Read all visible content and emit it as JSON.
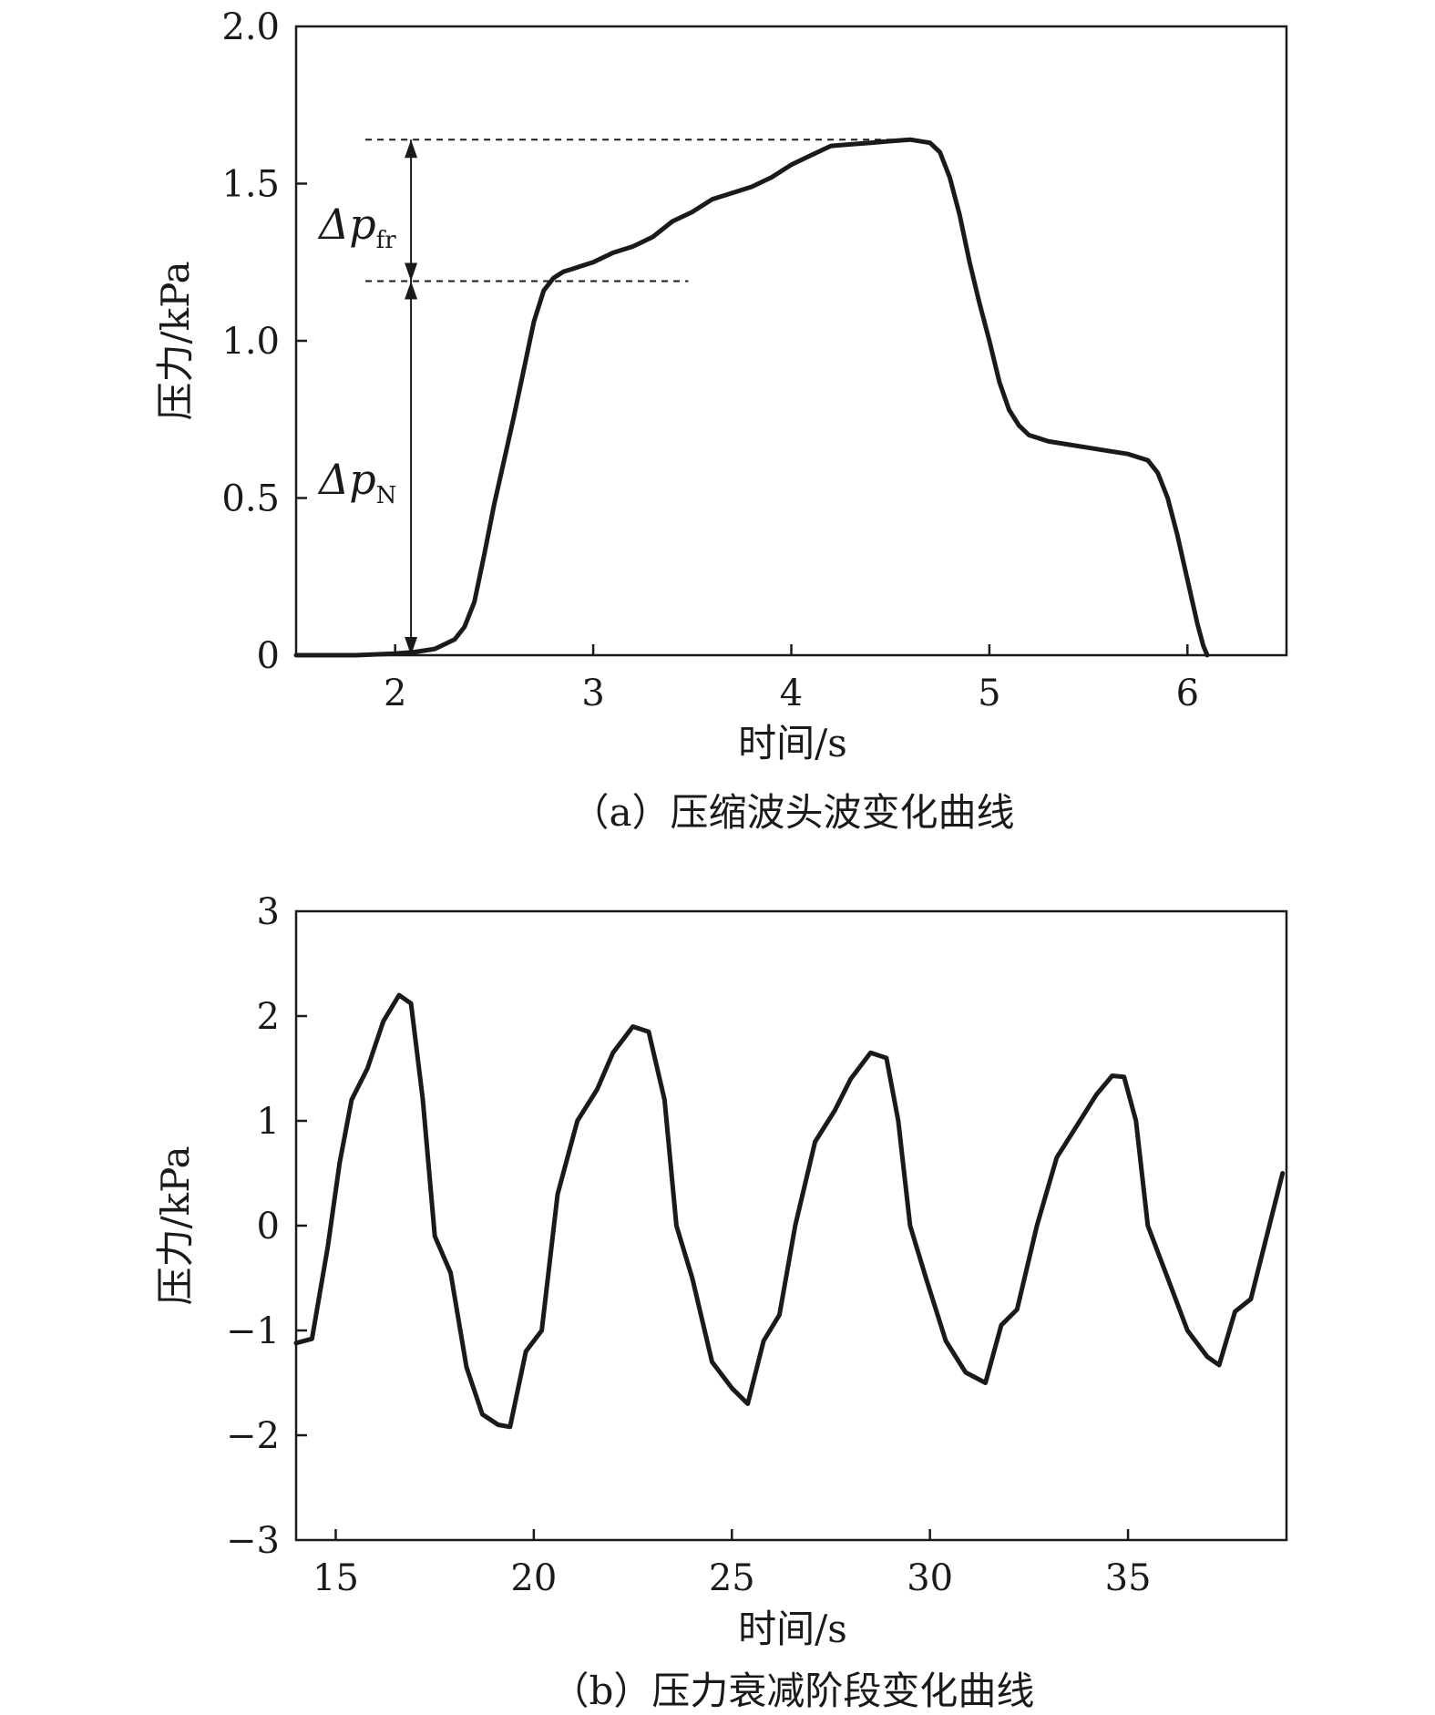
{
  "chart_data": [
    {
      "type": "line",
      "panel": "a",
      "caption": "（a）压缩波头波变化曲线",
      "xlabel": "时间/s",
      "ylabel": "压力/kPa",
      "xlim": [
        1.5,
        6.5
      ],
      "ylim": [
        0,
        2.0
      ],
      "xticks": [
        2,
        3,
        4,
        5,
        6
      ],
      "xtick_labels": [
        "2",
        "3",
        "4",
        "5",
        "6"
      ],
      "yticks": [
        0,
        0.5,
        1.0,
        1.5,
        2.0
      ],
      "ytick_labels": [
        "0",
        "0.5",
        "1.0",
        "1.5",
        "2.0"
      ],
      "grid": false,
      "annotations": {
        "delta_p_fr": {
          "main": "Δp",
          "sub": "fr",
          "from": 1.19,
          "to": 1.64,
          "x": 2.08
        },
        "delta_p_N": {
          "main": "Δp",
          "sub": "N",
          "from": 0,
          "to": 1.19,
          "x": 2.08
        },
        "reference_lines": [
          {
            "y": 1.64,
            "x_start": 1.85,
            "x_end": 4.55
          },
          {
            "y": 1.19,
            "x_start": 1.85,
            "x_end": 3.48
          }
        ]
      },
      "series": [
        {
          "x": [
            1.5,
            1.8,
            2.0,
            2.1,
            2.2,
            2.3,
            2.35,
            2.4,
            2.45,
            2.5,
            2.55,
            2.6,
            2.65,
            2.7,
            2.75,
            2.8,
            2.85,
            2.9,
            3.0,
            3.1,
            3.2,
            3.3,
            3.4,
            3.5,
            3.6,
            3.7,
            3.8,
            3.9,
            4.0,
            4.1,
            4.2,
            4.3,
            4.4,
            4.5,
            4.6,
            4.7,
            4.75,
            4.8,
            4.85,
            4.9,
            4.95,
            5.0,
            5.05,
            5.1,
            5.15,
            5.2,
            5.3,
            5.4,
            5.5,
            5.6,
            5.7,
            5.8,
            5.85,
            5.9,
            5.95,
            6.0,
            6.05,
            6.08,
            6.1
          ],
          "y": [
            0.0,
            0.0,
            0.005,
            0.01,
            0.02,
            0.05,
            0.09,
            0.17,
            0.32,
            0.48,
            0.62,
            0.76,
            0.91,
            1.06,
            1.16,
            1.2,
            1.22,
            1.23,
            1.25,
            1.28,
            1.3,
            1.33,
            1.38,
            1.41,
            1.45,
            1.47,
            1.49,
            1.52,
            1.56,
            1.59,
            1.62,
            1.625,
            1.63,
            1.635,
            1.64,
            1.63,
            1.6,
            1.52,
            1.4,
            1.25,
            1.12,
            1.0,
            0.87,
            0.78,
            0.73,
            0.7,
            0.68,
            0.67,
            0.66,
            0.65,
            0.64,
            0.62,
            0.58,
            0.5,
            0.38,
            0.24,
            0.1,
            0.03,
            0.0
          ]
        }
      ]
    },
    {
      "type": "line",
      "panel": "b",
      "caption": "（b）压力衰减阶段变化曲线",
      "xlabel": "时间/s",
      "ylabel": "压力/kPa",
      "xlim": [
        14,
        39
      ],
      "ylim": [
        -3,
        3
      ],
      "xticks": [
        15,
        20,
        25,
        30,
        35
      ],
      "xtick_labels": [
        "15",
        "20",
        "25",
        "30",
        "35"
      ],
      "yticks": [
        -3,
        -2,
        -1,
        0,
        1,
        2,
        3
      ],
      "ytick_labels": [
        "−3",
        "−2",
        "−1",
        "0",
        "1",
        "2",
        "3"
      ],
      "grid": false,
      "series": [
        {
          "x": [
            14.0,
            14.4,
            14.8,
            15.1,
            15.4,
            15.8,
            16.2,
            16.6,
            16.9,
            17.2,
            17.5,
            17.9,
            18.3,
            18.7,
            19.1,
            19.4,
            19.8,
            20.2,
            20.6,
            21.1,
            21.6,
            22.0,
            22.5,
            22.9,
            23.3,
            23.6,
            24.0,
            24.5,
            25.0,
            25.4,
            25.8,
            26.2,
            26.6,
            27.1,
            27.6,
            28.0,
            28.5,
            28.9,
            29.2,
            29.5,
            29.9,
            30.4,
            30.9,
            31.4,
            31.8,
            32.2,
            32.7,
            33.2,
            33.7,
            34.2,
            34.6,
            34.9,
            35.2,
            35.5,
            36.0,
            36.5,
            37.0,
            37.3,
            37.7,
            38.1,
            38.5,
            38.9
          ],
          "y": [
            -1.12,
            -1.08,
            -0.2,
            0.6,
            1.2,
            1.5,
            1.95,
            2.2,
            2.12,
            1.2,
            -0.1,
            -0.45,
            -1.35,
            -1.8,
            -1.9,
            -1.92,
            -1.2,
            -1.0,
            0.3,
            1.0,
            1.3,
            1.65,
            1.9,
            1.85,
            1.2,
            0.0,
            -0.5,
            -1.3,
            -1.55,
            -1.7,
            -1.1,
            -0.85,
            0.0,
            0.8,
            1.1,
            1.4,
            1.65,
            1.6,
            1.0,
            0.0,
            -0.5,
            -1.1,
            -1.4,
            -1.5,
            -0.95,
            -0.8,
            0.0,
            0.65,
            0.95,
            1.25,
            1.43,
            1.42,
            1.0,
            0.0,
            -0.5,
            -1.0,
            -1.25,
            -1.33,
            -0.82,
            -0.7,
            -0.1,
            0.5
          ]
        }
      ]
    }
  ]
}
